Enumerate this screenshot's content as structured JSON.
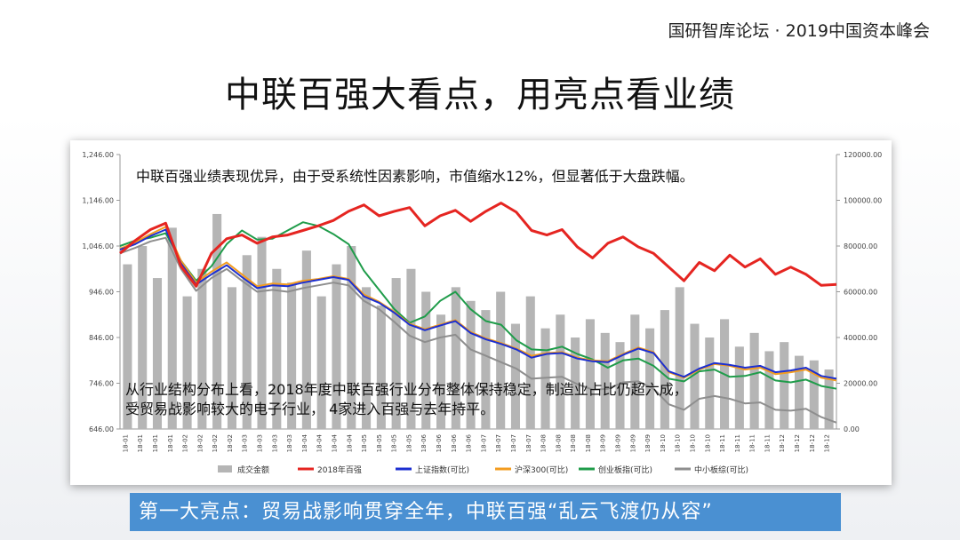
{
  "header": {
    "right_text": "国研智库论坛 · 2019中国资本峰会"
  },
  "slide": {
    "title": "中联百强大看点，用亮点看业绩"
  },
  "notes": {
    "top": "中联百强业绩表现优异，由于受系统性因素影响，市值缩水12%，但显著低于大盘跌幅。",
    "bottom_line1": "从行业结构分布上看，2018年度中联百强行业分布整体保持稳定，制造业占比仍超六成，",
    "bottom_line2": "受贸易战影响较大的电子行业， 4家进入百强与去年持平。"
  },
  "banner": {
    "text": "第一大亮点：贸易战影响贯穿全年，中联百强“乱云飞渡仍从容”"
  },
  "colors": {
    "banner": "#4a90d2"
  },
  "chart_data": {
    "type": "line",
    "title": "",
    "left_axis": {
      "ticks": [
        "646.00",
        "746.00",
        "846.00",
        "946.00",
        "1,046.00",
        "1,146.00",
        "1,246.00"
      ],
      "range": [
        646,
        1246
      ]
    },
    "right_axis": {
      "ticks": [
        "0.00",
        "20000.00",
        "40000.00",
        "60000.00",
        "80000.00",
        "100000.00",
        "120000.00"
      ],
      "range": [
        0,
        120000
      ]
    },
    "x_ticks": [
      "18-01",
      "18-01",
      "18-01",
      "18-01",
      "18-02",
      "18-02",
      "18-02",
      "18-02",
      "18-03",
      "18-03",
      "18-03",
      "18-03",
      "18-04",
      "18-04",
      "18-04",
      "18-04",
      "18-05",
      "18-05",
      "18-05",
      "18-05",
      "18-06",
      "18-06",
      "18-06",
      "18-06",
      "18-07",
      "18-07",
      "18-07",
      "18-07",
      "18-08",
      "18-08",
      "18-08",
      "18-08",
      "18-09",
      "18-09",
      "18-09",
      "18-09",
      "18-10",
      "18-10",
      "18-10",
      "18-10",
      "18-11",
      "18-11",
      "18-11",
      "18-11",
      "18-12",
      "18-12",
      "18-12",
      "18-12"
    ],
    "legend_position": "bottom",
    "volume": {
      "name": "成交金额",
      "color": "#b5b5b5",
      "values": [
        72000,
        80000,
        66000,
        88000,
        58000,
        70000,
        94000,
        62000,
        76000,
        84000,
        70000,
        64000,
        78000,
        58000,
        72000,
        80000,
        62000,
        54000,
        66000,
        70000,
        60000,
        50000,
        62000,
        56000,
        52000,
        60000,
        46000,
        58000,
        44000,
        50000,
        40000,
        48000,
        42000,
        38000,
        50000,
        44000,
        52000,
        62000,
        46000,
        40000,
        48000,
        36000,
        42000,
        34000,
        38000,
        32000,
        30000,
        26000
      ]
    },
    "series": [
      {
        "name": "2018年百强",
        "color": "#e52521",
        "width": 3,
        "values": [
          1030,
          1058,
          1082,
          1096,
          1002,
          958,
          1030,
          1062,
          1070,
          1052,
          1066,
          1070,
          1080,
          1090,
          1102,
          1122,
          1136,
          1112,
          1122,
          1130,
          1090,
          1112,
          1124,
          1100,
          1122,
          1140,
          1120,
          1080,
          1070,
          1082,
          1044,
          1020,
          1052,
          1066,
          1044,
          1030,
          1000,
          970,
          1010,
          992,
          1026,
          1000,
          1018,
          984,
          1000,
          984,
          960,
          962
        ]
      },
      {
        "name": "上证指数(可比)",
        "color": "#1c2fd1",
        "width": 2,
        "values": [
          1038,
          1050,
          1068,
          1082,
          1008,
          962,
          984,
          1004,
          978,
          954,
          960,
          958,
          966,
          972,
          978,
          972,
          936,
          922,
          900,
          874,
          862,
          872,
          882,
          856,
          842,
          832,
          820,
          802,
          810,
          812,
          800,
          794,
          792,
          808,
          822,
          812,
          772,
          760,
          778,
          790,
          786,
          780,
          784,
          770,
          774,
          780,
          762,
          756
        ]
      },
      {
        "name": "沪深300(可比)",
        "color": "#f39c1f",
        "width": 2,
        "values": [
          1040,
          1054,
          1072,
          1088,
          1014,
          966,
          990,
          1010,
          984,
          958,
          964,
          962,
          970,
          974,
          980,
          974,
          940,
          924,
          902,
          876,
          864,
          874,
          884,
          858,
          844,
          834,
          822,
          806,
          812,
          814,
          802,
          796,
          794,
          810,
          824,
          814,
          770,
          758,
          776,
          788,
          784,
          776,
          780,
          766,
          770,
          776,
          758,
          752
        ]
      },
      {
        "name": "创业板指(可比)",
        "color": "#1f9c4a",
        "width": 2,
        "values": [
          1046,
          1058,
          1064,
          1074,
          1014,
          970,
          1002,
          1050,
          1080,
          1060,
          1062,
          1080,
          1098,
          1090,
          1072,
          1050,
          992,
          950,
          908,
          878,
          892,
          926,
          946,
          908,
          882,
          874,
          840,
          820,
          818,
          826,
          810,
          798,
          780,
          796,
          800,
          784,
          756,
          750,
          772,
          776,
          760,
          762,
          770,
          752,
          748,
          754,
          740,
          734
        ]
      },
      {
        "name": "中小板综(可比)",
        "color": "#8e8e8e",
        "width": 2,
        "values": [
          1030,
          1042,
          1056,
          1064,
          996,
          948,
          976,
          996,
          970,
          946,
          950,
          946,
          954,
          960,
          966,
          960,
          926,
          908,
          880,
          850,
          836,
          846,
          852,
          820,
          806,
          792,
          778,
          756,
          758,
          760,
          744,
          732,
          734,
          748,
          750,
          734,
          700,
          688,
          712,
          718,
          712,
          702,
          704,
          688,
          686,
          690,
          672,
          660
        ]
      }
    ]
  }
}
